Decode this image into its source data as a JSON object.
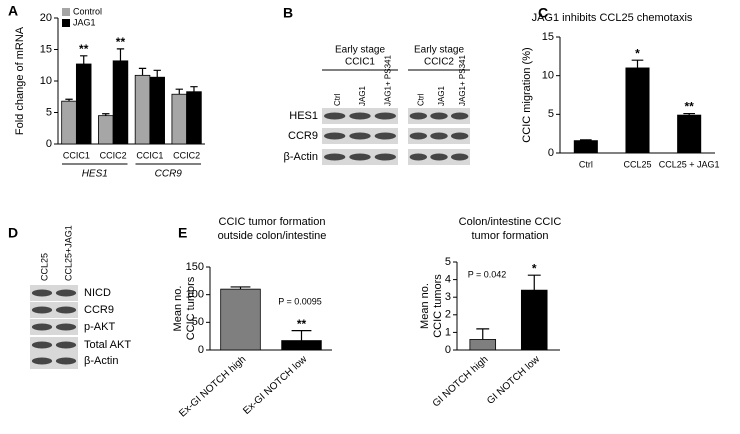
{
  "panel_labels": [
    "A",
    "B",
    "C",
    "D",
    "E"
  ],
  "chart_data": [
    {
      "type": "bar",
      "ylabel": "Fold change of mRNA",
      "categories": [
        "CCIC1",
        "CCIC2",
        "CCIC1",
        "CCIC2"
      ],
      "groups": [
        "HES1",
        "CCR9"
      ],
      "series": [
        {
          "name": "Control",
          "color": "#a6a6a6",
          "values": [
            6.8,
            4.5,
            10.9,
            7.9
          ],
          "errors": [
            0.3,
            0.3,
            1.1,
            0.8
          ]
        },
        {
          "name": "JAG1",
          "color": "#000000",
          "values": [
            12.7,
            13.2,
            10.6,
            8.3
          ],
          "errors": [
            1.3,
            1.9,
            1.1,
            0.8
          ],
          "significance": [
            "**",
            "**",
            null,
            null
          ]
        }
      ],
      "ylim": [
        0,
        20
      ],
      "yticks": [
        0,
        5,
        10,
        15,
        20
      ]
    },
    {
      "type": "bar",
      "title": "JAG1 inhibits CCL25 chemotaxis",
      "ylabel": "CCIC migration (%)",
      "categories": [
        "Ctrl",
        "CCL25",
        "CCL25 + JAG1"
      ],
      "values": [
        1.6,
        11.0,
        4.9
      ],
      "errors": [
        0.1,
        1.0,
        0.2
      ],
      "significance": [
        null,
        "*",
        "**"
      ],
      "color": "#000000",
      "ylim": [
        0,
        15
      ],
      "yticks": [
        0,
        5,
        10,
        15
      ]
    },
    {
      "type": "bar",
      "title_lines": [
        "CCIC tumor formation",
        "outside colon/intestine"
      ],
      "ylabel_lines": [
        "Mean no.",
        "CCIC tumors"
      ],
      "categories": [
        "Ex-GI NOTCH high",
        "Ex-GI NOTCH low"
      ],
      "values": [
        110,
        17
      ],
      "errors": [
        4,
        18
      ],
      "significance": [
        null,
        "**"
      ],
      "colors": [
        "#7f7f7f",
        "#000000"
      ],
      "p_value": "P = 0.0095",
      "ylim": [
        0,
        150
      ],
      "yticks": [
        0,
        50,
        100,
        150
      ]
    },
    {
      "type": "bar",
      "title_lines": [
        "Colon/intestine CCIC",
        "tumor formation"
      ],
      "ylabel_lines": [
        "Mean no.",
        "CCIC tumors"
      ],
      "categories": [
        "GI NOTCH high",
        "GI NOTCH low"
      ],
      "values": [
        0.6,
        3.4
      ],
      "errors": [
        0.6,
        0.85
      ],
      "significance": [
        null,
        "*"
      ],
      "colors": [
        "#7f7f7f",
        "#000000"
      ],
      "p_value": "P = 0.042",
      "ylim": [
        0,
        5
      ],
      "yticks": [
        0,
        1,
        2,
        3,
        4,
        5
      ]
    }
  ],
  "blots": {
    "B": {
      "groups": [
        {
          "heading": [
            "Early stage",
            "CCIC1"
          ],
          "lanes": [
            "Ctrl",
            "JAG1",
            "JAG1+ PS341"
          ]
        },
        {
          "heading": [
            "Early stage",
            "CCIC2"
          ],
          "lanes": [
            "Ctrl",
            "JAG1",
            "JAG1+ PS341"
          ]
        }
      ],
      "rows": [
        "HES1",
        "CCR9",
        "β-Actin"
      ]
    },
    "D": {
      "lanes": [
        "CCL25",
        "CCL25+JAG1"
      ],
      "rows": [
        "NICD",
        "CCR9",
        "p-AKT",
        "Total AKT",
        "β-Actin"
      ]
    }
  }
}
